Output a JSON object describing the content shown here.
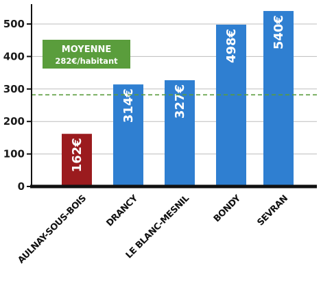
{
  "chart_data": {
    "type": "bar",
    "categories": [
      "AULNAY-SOUS-BOIS",
      "DRANCY",
      "LE BLANC-MESNIL",
      "BONDY",
      "SEVRAN"
    ],
    "values": [
      162,
      314,
      327,
      498,
      540
    ],
    "value_labels": [
      "162€",
      "314€",
      "327€",
      "498€",
      "540€"
    ],
    "bar_colors": [
      "#9b1b1e",
      "#2f7fd1",
      "#2f7fd1",
      "#2f7fd1",
      "#2f7fd1"
    ],
    "ylim": [
      0,
      560
    ],
    "yticks": [
      0,
      100,
      200,
      300,
      400,
      500
    ],
    "grid": true,
    "average": {
      "value": 282,
      "label_line1": "MOYENNE",
      "label_line2": "282€/habitant",
      "color": "#5a9d3c"
    }
  }
}
